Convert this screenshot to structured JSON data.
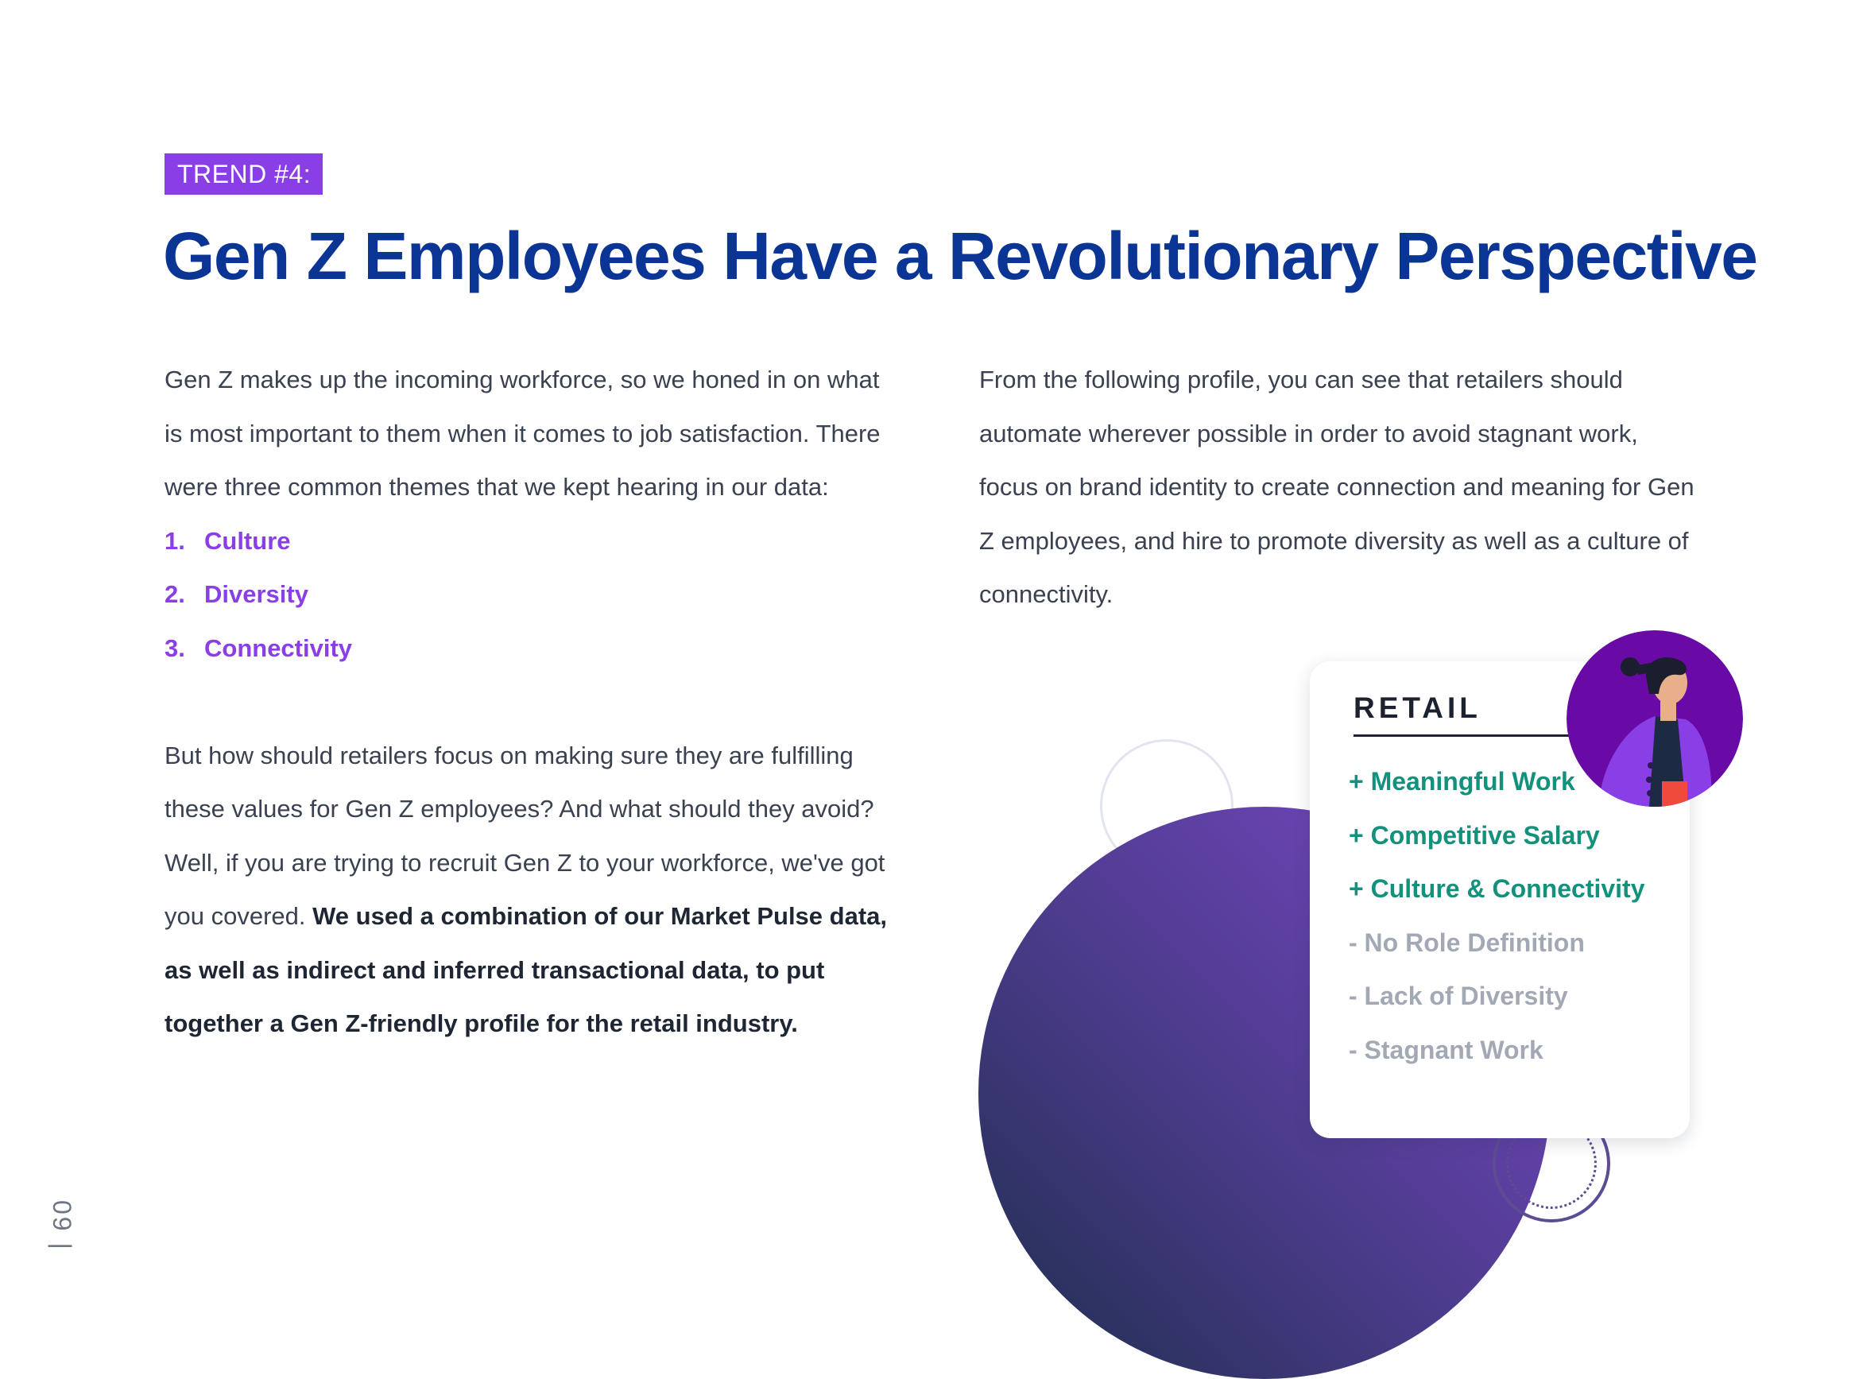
{
  "header": {
    "tag": "TREND #4:",
    "title": "Gen Z Employees Have a Revolutionary Perspective"
  },
  "left_column": {
    "intro": "Gen Z makes up the incoming workforce, so we honed in on what is most important to them when it comes to job satisfaction. There were three common themes that we kept hearing in our data:",
    "themes": [
      {
        "num": "1.",
        "label": "Culture"
      },
      {
        "num": "2.",
        "label": "Diversity"
      },
      {
        "num": "3.",
        "label": "Connectivity"
      }
    ],
    "body": "But how should retailers focus on making sure they are fulfilling these values for Gen Z employees? And what should they avoid? Well, if you are trying to recruit Gen Z to your workforce, we've got you covered. ",
    "body_bold": "We used a combination of our Market Pulse data, as well as indirect and inferred transactional data, to put together a Gen Z-friendly profile for the retail industry."
  },
  "right_column": {
    "text": "From the following profile, you can see that retailers should automate wherever possible in order to avoid stagnant work, focus on brand identity to create connection and meaning for Gen Z employees, and hire to promote diversity as well as a culture of connectivity."
  },
  "profile_card": {
    "title": "RETAIL",
    "positives": [
      "+ Meaningful Work",
      "+ Competitive Salary",
      "+ Culture & Connectivity"
    ],
    "negatives": [
      "- No Role Definition",
      "- Lack of Diversity",
      "- Stagnant Work"
    ],
    "avatar_icon": "gen-z-employee-illustration"
  },
  "footer": {
    "page_number": "09"
  },
  "colors": {
    "accent_purple": "#8a3ee6",
    "title_blue": "#0b3595",
    "positive_green": "#14917d",
    "negative_gray": "#a3a9b4"
  }
}
